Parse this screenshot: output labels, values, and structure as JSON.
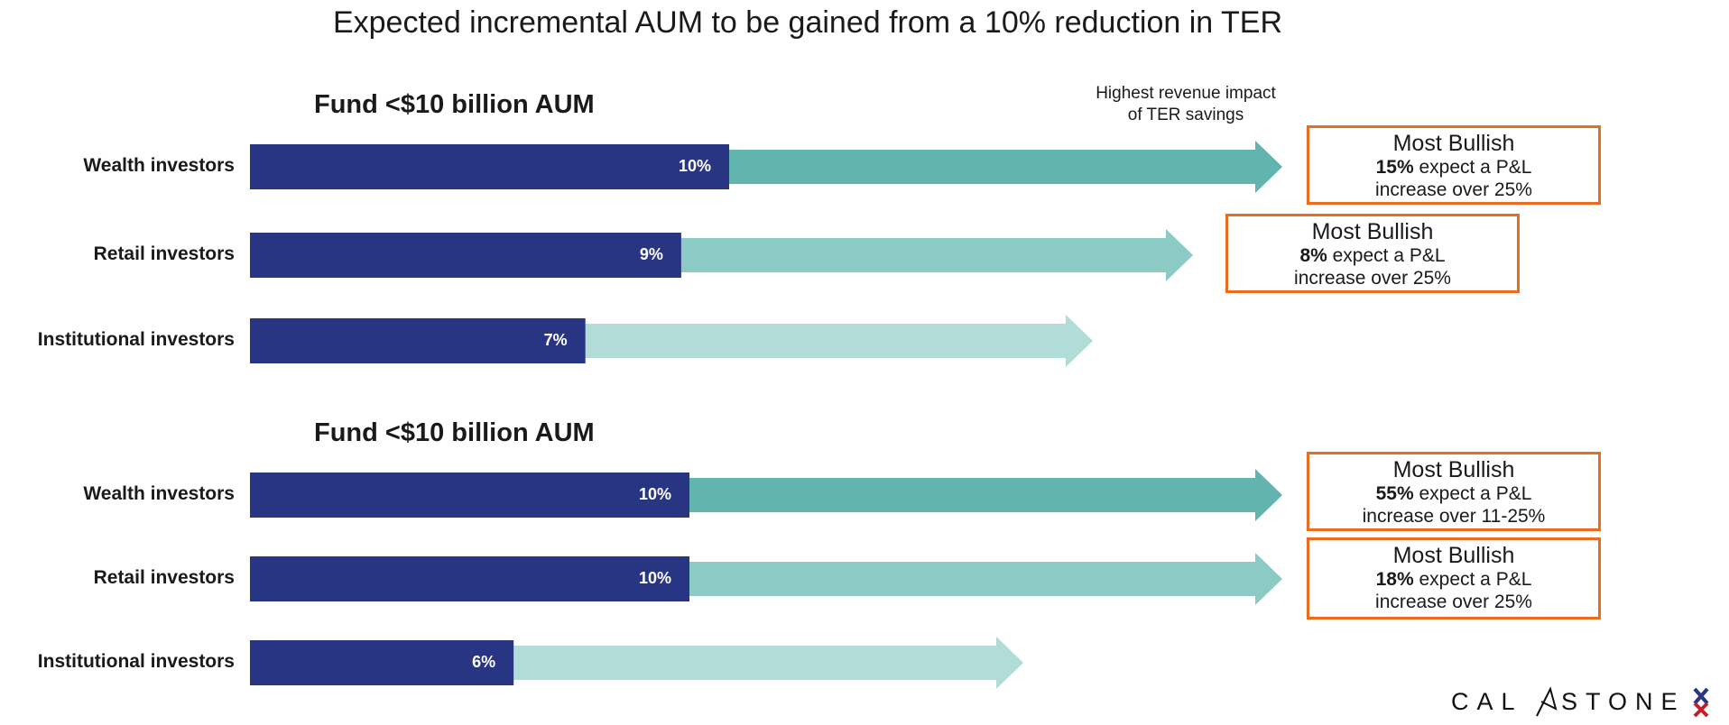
{
  "chart_data": {
    "type": "bar",
    "title": "Expected incremental AUM to be gained from a 10% reduction in TER",
    "annotation": "Highest revenue impact of TER savings",
    "sections": [
      {
        "title": "Fund <$10 billion AUM",
        "categories": [
          "Wealth investors",
          "Retail investors",
          "Institutional investors"
        ],
        "values": [
          10,
          9,
          7
        ],
        "labels": [
          "10%",
          "9%",
          "7%"
        ],
        "callouts": [
          {
            "heading": "Most Bullish",
            "pct": "15%",
            "line1_rest": " expect a P&L",
            "line2": "increase over 25%"
          },
          {
            "heading": "Most Bullish",
            "pct": "8%",
            "line1_rest": " expect a P&L",
            "line2": "increase over 25%"
          },
          null
        ]
      },
      {
        "title": "Fund <$10 billion AUM",
        "categories": [
          "Wealth investors",
          "Retail investors",
          "Institutional investors"
        ],
        "values": [
          10,
          10,
          6
        ],
        "labels": [
          "10%",
          "10%",
          "6%"
        ],
        "callouts": [
          {
            "heading": "Most Bullish",
            "pct": "55%",
            "line1_rest": " expect a P&L",
            "line2": "increase over 11-25%"
          },
          {
            "heading": "Most Bullish",
            "pct": "18%",
            "line1_rest": " expect a P&L",
            "line2": "increase over 25%"
          },
          null
        ]
      }
    ],
    "unit": "%",
    "colors": {
      "bar": "#283583",
      "arrow_wealth": "#62b5ae",
      "arrow_retail": "#8ccac5",
      "arrow_institutional": "#b2dcd8",
      "callout_border": "#ec6c1f"
    }
  },
  "annotation": {
    "line1": "Highest revenue impact",
    "line2": "of TER savings"
  },
  "logo": {
    "text": "CALASTONE"
  }
}
